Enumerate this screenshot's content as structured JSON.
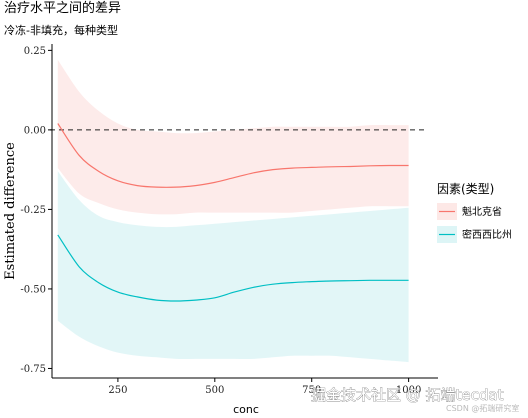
{
  "chart_data": {
    "type": "line",
    "title": "治疗水平之间的差异",
    "subtitle": "冷冻-非填充，每种类型",
    "xlabel": "conc",
    "ylabel": "Estimated difference",
    "xlim": [
      80,
      1050
    ],
    "ylim": [
      -0.78,
      0.27
    ],
    "x_ticks": [
      250,
      500,
      750,
      1000
    ],
    "x_tick_labels": [
      "250",
      "500",
      "750",
      "1000"
    ],
    "y_ticks": [
      0.25,
      0.0,
      -0.25,
      -0.5,
      -0.75
    ],
    "y_tick_labels": [
      "0.25",
      "0.00",
      "-0.25",
      "-0.50",
      "-0.75"
    ],
    "reference_line": {
      "y": 0,
      "style": "dashed"
    },
    "legend_title": "因素(类型)",
    "legend_placement": "right",
    "grid": false,
    "x": [
      95,
      150,
      200,
      250,
      300,
      350,
      400,
      450,
      500,
      550,
      600,
      650,
      700,
      750,
      800,
      850,
      900,
      950,
      1000
    ],
    "series": [
      {
        "name": "魁北克省",
        "color": "#F8766D",
        "fill": "#FDE8E6",
        "values": [
          0.02,
          -0.08,
          -0.13,
          -0.16,
          -0.175,
          -0.18,
          -0.18,
          -0.175,
          -0.165,
          -0.15,
          -0.135,
          -0.125,
          -0.12,
          -0.118,
          -0.116,
          -0.115,
          -0.113,
          -0.112,
          -0.112
        ],
        "lower": [
          -0.12,
          -0.2,
          -0.23,
          -0.25,
          -0.26,
          -0.265,
          -0.265,
          -0.26,
          -0.26,
          -0.26,
          -0.26,
          -0.26,
          -0.26,
          -0.255,
          -0.25,
          -0.245,
          -0.24,
          -0.24,
          -0.24
        ],
        "upper": [
          0.22,
          0.12,
          0.06,
          0.02,
          0.0,
          -0.005,
          -0.01,
          -0.01,
          -0.005,
          0.0,
          0.005,
          0.01,
          0.01,
          0.01,
          0.01,
          0.01,
          0.015,
          0.015,
          0.015
        ]
      },
      {
        "name": "密西西比州",
        "color": "#00BFC4",
        "fill": "#DDF5F6",
        "values": [
          -0.33,
          -0.43,
          -0.48,
          -0.51,
          -0.525,
          -0.535,
          -0.538,
          -0.535,
          -0.528,
          -0.51,
          -0.495,
          -0.485,
          -0.48,
          -0.477,
          -0.475,
          -0.474,
          -0.473,
          -0.473,
          -0.473
        ],
        "lower": [
          -0.6,
          -0.65,
          -0.68,
          -0.7,
          -0.71,
          -0.715,
          -0.72,
          -0.72,
          -0.72,
          -0.72,
          -0.72,
          -0.715,
          -0.71,
          -0.71,
          -0.71,
          -0.715,
          -0.72,
          -0.725,
          -0.73
        ],
        "upper": [
          -0.13,
          -0.22,
          -0.27,
          -0.29,
          -0.3,
          -0.305,
          -0.305,
          -0.3,
          -0.295,
          -0.29,
          -0.285,
          -0.28,
          -0.275,
          -0.27,
          -0.265,
          -0.26,
          -0.255,
          -0.25,
          -0.245
        ]
      }
    ]
  },
  "watermark": {
    "main": "掘金技术社区 @ 拓端tecdat",
    "small": "CSDN @拓端研究室"
  }
}
